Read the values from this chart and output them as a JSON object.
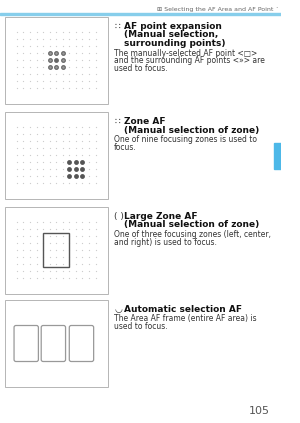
{
  "page_number": "105",
  "header_text": "⊞ Selecting the AF Area and AF Point ´",
  "header_line_color": "#87CEEB",
  "bg_color": "#ffffff",
  "tab_color": "#4db8e8",
  "sections": [
    {
      "icon_text": "∷",
      "title_bold": "AF point expansion",
      "title_lines": [
        "(Manual selection,",
        "surrounding points)"
      ],
      "body": "The manually-selected AF point <□>\nand the surrounding AF points <»> are\nused to focus.",
      "image_type": "dots_center_selected"
    },
    {
      "icon_text": "∷",
      "title_bold": "Zone AF",
      "title_lines": [
        "(Manual selection of zone)"
      ],
      "body": "One of nine focusing zones is used to\nfocus.",
      "image_type": "dots_zone_selected"
    },
    {
      "icon_text": "( )",
      "title_bold": "Large Zone AF",
      "title_lines": [
        "(Manual selection of zone)"
      ],
      "body": "One of three focusing zones (left, center,\nand right) is used to focus.",
      "image_type": "dots_bracket_center"
    },
    {
      "icon_text": "◡",
      "title_bold": "Automatic selection AF",
      "title_lines": [],
      "body": "The Area AF frame (entire AF area) is\nused to focus.",
      "image_type": "three_brackets"
    }
  ]
}
